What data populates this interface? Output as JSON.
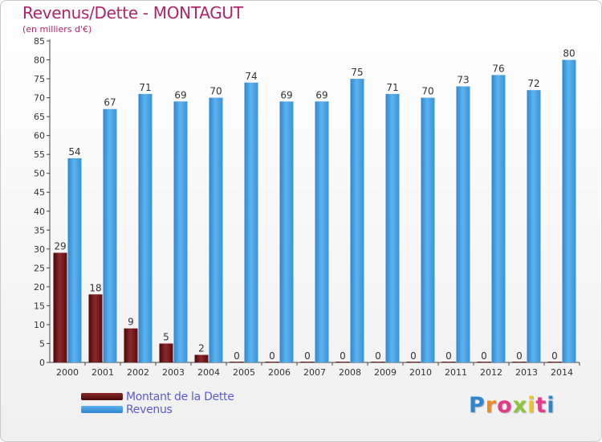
{
  "title": "Revenus/Dette - MONTAGUT",
  "subtitle": "(en milliers d'€)",
  "logo": {
    "text": "Proxiti"
  },
  "legend": {
    "items": [
      {
        "label": "Montant de la Dette",
        "color": "#6b0f12"
      },
      {
        "label": "Revenus",
        "color": "#4da6e8"
      }
    ]
  },
  "chart_data": {
    "type": "bar",
    "title": "Revenus/Dette - MONTAGUT",
    "subtitle": "(en milliers d'€)",
    "xlabel": "",
    "ylabel": "",
    "ylim": [
      0,
      85
    ],
    "yticks": [
      0,
      5,
      10,
      15,
      20,
      25,
      30,
      35,
      40,
      45,
      50,
      55,
      60,
      65,
      70,
      75,
      80,
      85
    ],
    "grid": false,
    "legend_position": "bottom-left",
    "categories": [
      "2000",
      "2001",
      "2002",
      "2003",
      "2004",
      "2005",
      "2006",
      "2007",
      "2008",
      "2009",
      "2010",
      "2011",
      "2012",
      "2013",
      "2014"
    ],
    "series": [
      {
        "name": "Montant de la Dette",
        "color": "#6b0f12",
        "values": [
          29,
          18,
          9,
          5,
          2,
          0,
          0,
          0,
          0,
          0,
          0,
          0,
          0,
          0,
          0
        ]
      },
      {
        "name": "Revenus",
        "color": "#4da6e8",
        "values": [
          54,
          67,
          71,
          69,
          70,
          74,
          69,
          69,
          75,
          71,
          70,
          73,
          76,
          72,
          80
        ]
      }
    ]
  }
}
